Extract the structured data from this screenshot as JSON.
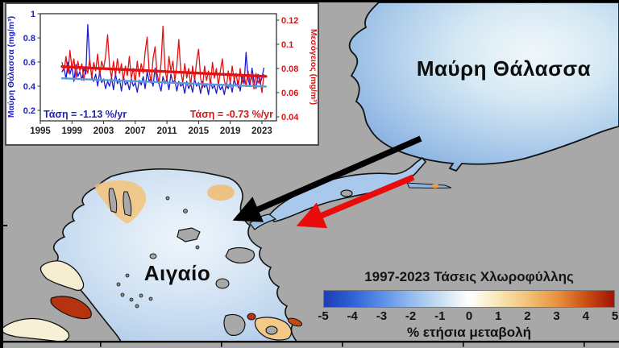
{
  "figure": {
    "black_sea_label": "Μαύρη Θάλασσα",
    "aegean_label": "Αιγαίο"
  },
  "chart_data": [
    {
      "type": "line",
      "title": "",
      "x_ticks": [
        "1995",
        "1999",
        "2003",
        "2007",
        "2011",
        "2015",
        "2019",
        "2023"
      ],
      "x_range": [
        1995,
        2024.8
      ],
      "left_axis": {
        "label": "Μαύρη Θάλασσα (mg/m³)",
        "ticks": [
          1,
          0.8,
          0.6,
          0.4,
          0.2
        ],
        "range": [
          0.11,
          1.0
        ],
        "color": "#2222bb"
      },
      "right_axis": {
        "label": "Μεσόγειος (mg/m³)",
        "ticks": [
          0.12,
          0.1,
          0.08,
          0.06,
          0.04
        ],
        "range": [
          0.037,
          0.125
        ],
        "color": "#d81414"
      },
      "annotations": [
        {
          "text": "Τάση = -1.13 %/yr",
          "color": "#2222bb",
          "pos": "bottom-left"
        },
        {
          "text": "Τάση = -0.73 %/yr",
          "color": "#d81414",
          "pos": "bottom-right"
        }
      ],
      "series": [
        {
          "name": "black-sea-chlorophyll",
          "axis": "left",
          "color": "#1b1bd0",
          "width": 1.3,
          "start": 1997.75,
          "step": 0.25,
          "values": [
            0.52,
            0.55,
            0.46,
            0.6,
            0.5,
            0.56,
            0.44,
            0.58,
            0.48,
            0.52,
            0.45,
            0.55,
            0.5,
            0.91,
            0.6,
            0.48,
            0.44,
            0.5,
            0.4,
            0.52,
            0.43,
            0.46,
            0.38,
            0.44,
            0.4,
            0.47,
            0.37,
            0.5,
            0.42,
            0.46,
            0.36,
            0.48,
            0.41,
            0.44,
            0.37,
            0.46,
            0.4,
            0.43,
            0.35,
            0.45,
            0.41,
            0.48,
            0.38,
            0.52,
            0.44,
            0.47,
            0.4,
            0.55,
            0.45,
            0.42,
            0.36,
            0.48,
            0.42,
            0.46,
            0.37,
            0.5,
            0.43,
            0.45,
            0.36,
            0.44,
            0.4,
            0.42,
            0.34,
            0.44,
            0.38,
            0.42,
            0.35,
            0.46,
            0.4,
            0.43,
            0.34,
            0.44,
            0.39,
            0.42,
            0.33,
            0.45,
            0.38,
            0.41,
            0.34,
            0.43,
            0.37,
            0.4,
            0.33,
            0.42,
            0.38,
            0.43,
            0.35,
            0.46,
            0.4,
            0.44,
            0.36,
            0.48,
            0.42,
            0.68,
            0.46,
            0.4,
            0.55,
            0.44,
            0.38,
            0.5,
            0.42,
            0.47,
            0.55
          ]
        },
        {
          "name": "mediterranean-chlorophyll",
          "axis": "right",
          "color": "#e31111",
          "width": 1.3,
          "start": 1997.75,
          "step": 0.25,
          "values": [
            0.085,
            0.078,
            0.09,
            0.076,
            0.095,
            0.08,
            0.088,
            0.072,
            0.086,
            0.078,
            0.084,
            0.07,
            0.082,
            0.076,
            0.088,
            0.072,
            0.085,
            0.078,
            0.092,
            0.074,
            0.086,
            0.08,
            0.09,
            0.108,
            0.082,
            0.072,
            0.086,
            0.074,
            0.088,
            0.076,
            0.084,
            0.07,
            0.082,
            0.074,
            0.09,
            0.072,
            0.08,
            0.068,
            0.086,
            0.073,
            0.084,
            0.076,
            0.094,
            0.106,
            0.078,
            0.068,
            0.088,
            0.098,
            0.076,
            0.068,
            0.084,
            0.115,
            0.08,
            0.07,
            0.09,
            0.078,
            0.086,
            0.07,
            0.082,
            0.104,
            0.078,
            0.068,
            0.084,
            0.072,
            0.08,
            0.066,
            0.082,
            0.07,
            0.086,
            0.096,
            0.072,
            0.064,
            0.082,
            0.07,
            0.078,
            0.066,
            0.085,
            0.072,
            0.08,
            0.066,
            0.078,
            0.088,
            0.07,
            0.064,
            0.078,
            0.068,
            0.082,
            0.07,
            0.076,
            0.064,
            0.08,
            0.068,
            0.075,
            0.065,
            0.078,
            0.068,
            0.074,
            0.063,
            0.076,
            0.068,
            0.072,
            0.06,
            0.075
          ]
        },
        {
          "name": "black-sea-trend",
          "axis": "left",
          "color": "#5b9bd5",
          "width": 2.4,
          "trend": true,
          "x": [
            1997.75,
            2023.5
          ],
          "y": [
            0.465,
            0.397
          ]
        },
        {
          "name": "mediterranean-trend",
          "axis": "right",
          "color": "#e31111",
          "width": 3.4,
          "trend": true,
          "x": [
            1997.75,
            2023.5
          ],
          "y": [
            0.0815,
            0.0735
          ]
        }
      ]
    },
    {
      "type": "colorbar",
      "title": "1997-2023 Τάσεις Χλωροφύλλης",
      "ticks": [
        "-5",
        "-4",
        "-3",
        "-2",
        "-1",
        "0",
        "1",
        "2",
        "3",
        "4",
        "5"
      ],
      "label": "% ετήσια μεταβολή",
      "range": [
        -5,
        5
      ],
      "colors": [
        "#1e3db4",
        "#2f62d7",
        "#5b8fe8",
        "#93bbee",
        "#c9def2",
        "#ffffff",
        "#f8e7b8",
        "#f2c377",
        "#e89440",
        "#cc5014",
        "#a01305"
      ]
    }
  ]
}
